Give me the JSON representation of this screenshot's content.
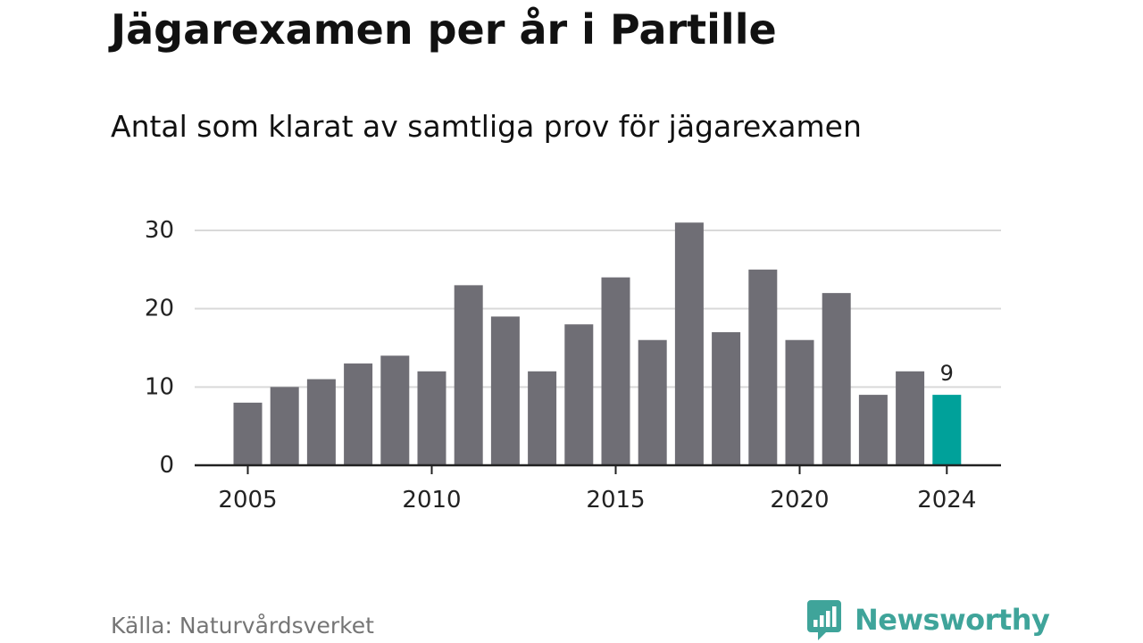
{
  "title": "Jägarexamen per år i Partille",
  "subtitle": "Antal som klarat av samtliga prov för jägarexamen",
  "source": "Källa: Naturvårdsverket",
  "brand": {
    "name": "Newsworthy",
    "icon": "newsworthy-logo-icon"
  },
  "colors": {
    "bar": "#6f6e75",
    "highlight": "#00a19a",
    "grid": "#d9d9d9",
    "axis": "#222222",
    "brand": "#3fa49a"
  },
  "chart_data": {
    "type": "bar",
    "categories": [
      2005,
      2006,
      2007,
      2008,
      2009,
      2010,
      2011,
      2012,
      2013,
      2014,
      2015,
      2016,
      2017,
      2018,
      2019,
      2020,
      2021,
      2022,
      2023,
      2024
    ],
    "values": [
      8,
      10,
      11,
      13,
      14,
      12,
      23,
      19,
      12,
      18,
      24,
      16,
      31,
      17,
      25,
      16,
      22,
      9,
      12,
      9
    ],
    "highlight_category": 2024,
    "data_labels": [
      {
        "category": 2024,
        "text": "9"
      }
    ],
    "x_ticks": [
      2005,
      2010,
      2015,
      2020,
      2024
    ],
    "y_ticks": [
      0,
      10,
      20,
      30
    ],
    "ylim": [
      0,
      30
    ],
    "grid": true,
    "xlabel": "",
    "ylabel": ""
  }
}
